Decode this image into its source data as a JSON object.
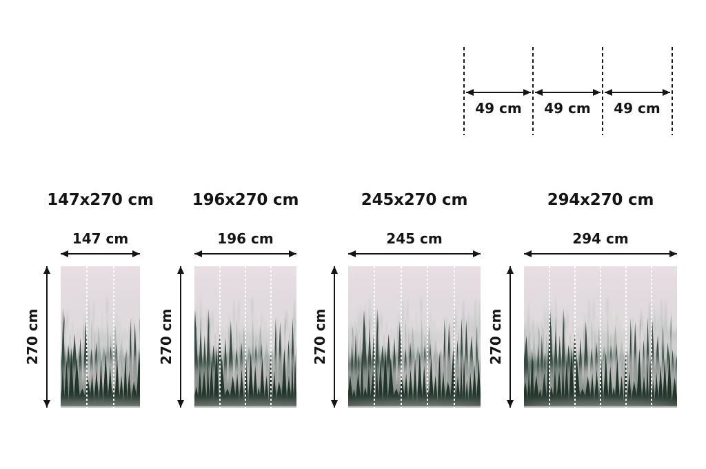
{
  "page": {
    "background": "#ffffff",
    "text_color": "#141414"
  },
  "panel_guide": {
    "segments": [
      "49 cm",
      "49 cm",
      "49 cm"
    ]
  },
  "variants": [
    {
      "title": "147x270 cm",
      "width_label": "147 cm",
      "height_label": "270 cm",
      "panels": 3
    },
    {
      "title": "196x270 cm",
      "width_label": "196 cm",
      "height_label": "270 cm",
      "panels": 4
    },
    {
      "title": "245x270 cm",
      "width_label": "245 cm",
      "height_label": "270 cm",
      "panels": 5
    },
    {
      "title": "294x270 cm",
      "width_label": "294 cm",
      "height_label": "270 cm",
      "panels": 6
    }
  ],
  "artwork": {
    "name": "misty-forest-photo",
    "colors": {
      "sky_top": "#e9dfe4",
      "sky_mid": "#ddd7db",
      "haze": "#cdd1cf",
      "haze_low": "#c2c8c5",
      "far_trees": "#93a49c",
      "mid_trees": "#5d7168",
      "near_trees": "#36493f",
      "dark_trees": "#243529",
      "fog": "#e4dee1"
    }
  }
}
